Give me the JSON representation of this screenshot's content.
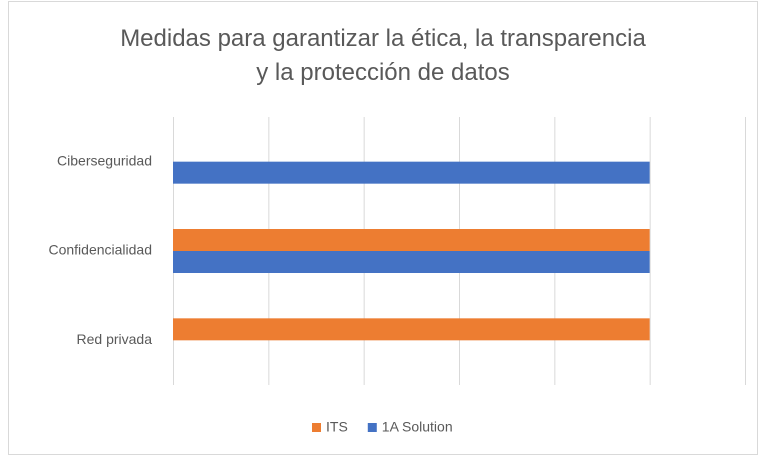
{
  "chart_data": {
    "type": "hbar",
    "title": "Medidas para garantizar la ética, la transparencia\ny la protección de datos",
    "categories": [
      "Ciberseguridad",
      "Confidencialidad",
      "Red privada"
    ],
    "series": [
      {
        "name": "ITS",
        "color": "#ed7d31",
        "values": [
          null,
          5,
          5
        ]
      },
      {
        "name": "1A Solution",
        "color": "#4472c4",
        "values": [
          5,
          5,
          null
        ]
      }
    ],
    "xlim": [
      0,
      6
    ],
    "xticks": [
      0,
      1,
      2,
      3,
      4,
      5,
      6
    ],
    "grid": true,
    "legend": "bottom"
  }
}
